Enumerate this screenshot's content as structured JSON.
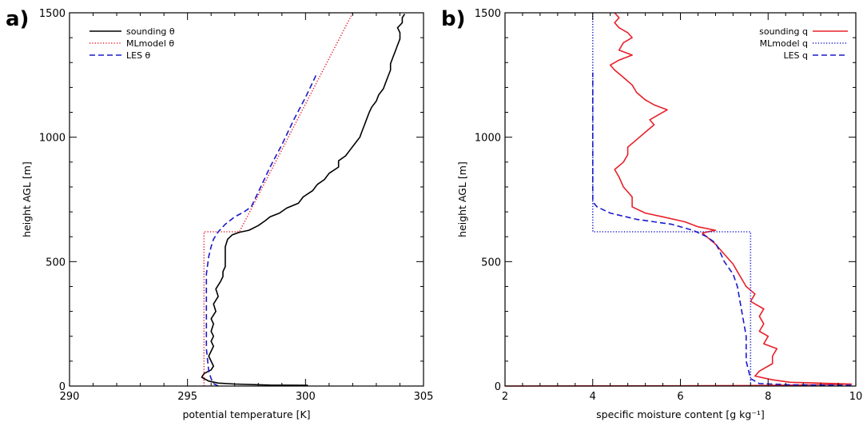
{
  "chart_data": [
    {
      "panel_label": "a)",
      "type": "line",
      "xlabel": "potential temperature [K]",
      "ylabel": "height AGL [m]",
      "xlim": [
        290,
        305
      ],
      "ylim": [
        0,
        1500
      ],
      "xticks": [
        290,
        295,
        300,
        305
      ],
      "yticks": [
        0,
        500,
        1000,
        1500
      ],
      "grid": false,
      "legend_position": "top-left",
      "series": [
        {
          "name": "sounding θ",
          "color": "#000000",
          "dash": "solid",
          "points": [
            [
              300.1,
              3
            ],
            [
              298.5,
              4
            ],
            [
              297.0,
              8
            ],
            [
              296.3,
              12
            ],
            [
              295.9,
              20
            ],
            [
              295.6,
              35
            ],
            [
              295.7,
              50
            ],
            [
              296.0,
              65
            ],
            [
              296.1,
              80
            ],
            [
              296.0,
              100
            ],
            [
              295.9,
              120
            ],
            [
              296.0,
              140
            ],
            [
              296.1,
              160
            ],
            [
              296.0,
              180
            ],
            [
              296.1,
              200
            ],
            [
              296.0,
              220
            ],
            [
              296.1,
              250
            ],
            [
              296.0,
              270
            ],
            [
              296.2,
              300
            ],
            [
              296.1,
              330
            ],
            [
              296.3,
              360
            ],
            [
              296.2,
              390
            ],
            [
              296.4,
              420
            ],
            [
              296.5,
              440
            ],
            [
              296.5,
              460
            ],
            [
              296.6,
              480
            ],
            [
              296.6,
              500
            ],
            [
              296.6,
              530
            ],
            [
              296.6,
              560
            ],
            [
              296.7,
              590
            ],
            [
              296.9,
              608
            ],
            [
              297.2,
              618
            ],
            [
              297.6,
              626
            ],
            [
              298.0,
              645
            ],
            [
              298.3,
              665
            ],
            [
              298.5,
              680
            ],
            [
              298.9,
              695
            ],
            [
              299.2,
              715
            ],
            [
              299.7,
              735
            ],
            [
              299.9,
              760
            ],
            [
              300.3,
              785
            ],
            [
              300.5,
              810
            ],
            [
              300.8,
              830
            ],
            [
              301.0,
              855
            ],
            [
              301.4,
              880
            ],
            [
              301.4,
              905
            ],
            [
              301.7,
              925
            ],
            [
              301.9,
              950
            ],
            [
              302.1,
              975
            ],
            [
              302.3,
              1000
            ],
            [
              302.4,
              1025
            ],
            [
              302.5,
              1050
            ],
            [
              302.6,
              1075
            ],
            [
              302.7,
              1100
            ],
            [
              302.8,
              1120
            ],
            [
              303.0,
              1145
            ],
            [
              303.1,
              1170
            ],
            [
              303.3,
              1195
            ],
            [
              303.4,
              1220
            ],
            [
              303.5,
              1245
            ],
            [
              303.6,
              1270
            ],
            [
              303.6,
              1295
            ],
            [
              303.7,
              1320
            ],
            [
              303.8,
              1345
            ],
            [
              303.9,
              1370
            ],
            [
              304.0,
              1395
            ],
            [
              304.0,
              1420
            ],
            [
              303.9,
              1440
            ],
            [
              304.1,
              1460
            ],
            [
              304.1,
              1480
            ],
            [
              304.2,
              1495
            ]
          ]
        },
        {
          "name": "MLmodel θ",
          "color": "#e8202a",
          "dash": "dotted",
          "points": [
            [
              295.7,
              0
            ],
            [
              295.7,
              620
            ],
            [
              297.2,
              620
            ],
            [
              302.0,
              1500
            ]
          ]
        },
        {
          "name": "LES θ",
          "color": "#1a1acc",
          "dash": "dashed",
          "points": [
            [
              296.3,
              0
            ],
            [
              296.1,
              10
            ],
            [
              296.0,
              30
            ],
            [
              295.9,
              60
            ],
            [
              295.8,
              150
            ],
            [
              295.8,
              300
            ],
            [
              295.8,
              450
            ],
            [
              295.9,
              520
            ],
            [
              296.0,
              560
            ],
            [
              296.1,
              590
            ],
            [
              296.3,
              620
            ],
            [
              296.6,
              650
            ],
            [
              297.0,
              680
            ],
            [
              297.4,
              700
            ],
            [
              297.7,
              720
            ],
            [
              298.0,
              780
            ],
            [
              298.5,
              880
            ],
            [
              299.0,
              970
            ],
            [
              299.5,
              1070
            ],
            [
              300.0,
              1160
            ],
            [
              300.5,
              1260
            ]
          ]
        }
      ]
    },
    {
      "panel_label": "b)",
      "type": "line",
      "xlabel": "specific moisture content [g kg⁻¹]",
      "ylabel": "height AGL [m]",
      "xlim": [
        2,
        10
      ],
      "ylim": [
        0,
        1500
      ],
      "xticks": [
        2,
        4,
        6,
        8,
        10
      ],
      "yticks": [
        0,
        500,
        1000,
        1500
      ],
      "grid": false,
      "legend_position": "top-right",
      "series": [
        {
          "name": "sounding q",
          "color": "#e8202a",
          "dash": "solid",
          "points": [
            [
              2.0,
              0
            ],
            [
              6.0,
              1
            ],
            [
              7.5,
              2
            ],
            [
              8.6,
              4
            ],
            [
              9.5,
              6
            ],
            [
              9.9,
              8
            ],
            [
              8.5,
              15
            ],
            [
              8.1,
              25
            ],
            [
              7.7,
              40
            ],
            [
              7.8,
              60
            ],
            [
              8.1,
              90
            ],
            [
              8.1,
              120
            ],
            [
              8.2,
              150
            ],
            [
              7.9,
              170
            ],
            [
              8.0,
              200
            ],
            [
              7.8,
              220
            ],
            [
              7.9,
              250
            ],
            [
              7.8,
              280
            ],
            [
              7.9,
              310
            ],
            [
              7.6,
              340
            ],
            [
              7.7,
              370
            ],
            [
              7.5,
              400
            ],
            [
              7.4,
              430
            ],
            [
              7.3,
              460
            ],
            [
              7.2,
              490
            ],
            [
              7.0,
              530
            ],
            [
              6.8,
              570
            ],
            [
              6.6,
              600
            ],
            [
              6.5,
              615
            ],
            [
              6.8,
              626
            ],
            [
              6.4,
              640
            ],
            [
              6.1,
              660
            ],
            [
              5.6,
              680
            ],
            [
              5.2,
              695
            ],
            [
              4.9,
              720
            ],
            [
              4.9,
              760
            ],
            [
              4.7,
              800
            ],
            [
              4.6,
              840
            ],
            [
              4.5,
              870
            ],
            [
              4.7,
              900
            ],
            [
              4.8,
              930
            ],
            [
              4.8,
              960
            ],
            [
              5.0,
              990
            ],
            [
              5.2,
              1020
            ],
            [
              5.4,
              1050
            ],
            [
              5.3,
              1070
            ],
            [
              5.5,
              1090
            ],
            [
              5.7,
              1110
            ],
            [
              5.4,
              1130
            ],
            [
              5.2,
              1150
            ],
            [
              5.0,
              1180
            ],
            [
              4.9,
              1210
            ],
            [
              4.7,
              1240
            ],
            [
              4.5,
              1270
            ],
            [
              4.4,
              1290
            ],
            [
              4.6,
              1310
            ],
            [
              4.9,
              1330
            ],
            [
              4.6,
              1350
            ],
            [
              4.7,
              1380
            ],
            [
              4.9,
              1400
            ],
            [
              4.8,
              1420
            ],
            [
              4.6,
              1440
            ],
            [
              4.5,
              1460
            ],
            [
              4.6,
              1480
            ],
            [
              4.5,
              1500
            ]
          ]
        },
        {
          "name": "MLmodel q",
          "color": "#1a1acc",
          "dash": "dotted",
          "points": [
            [
              7.6,
              0
            ],
            [
              7.6,
              620
            ],
            [
              4.0,
              620
            ],
            [
              4.0,
              1500
            ]
          ]
        },
        {
          "name": "LES q",
          "color": "#1a1acc",
          "dash": "dashed",
          "points": [
            [
              9.9,
              3
            ],
            [
              8.5,
              5
            ],
            [
              7.8,
              10
            ],
            [
              7.6,
              30
            ],
            [
              7.5,
              100
            ],
            [
              7.5,
              200
            ],
            [
              7.4,
              300
            ],
            [
              7.3,
              400
            ],
            [
              7.2,
              450
            ],
            [
              7.0,
              500
            ],
            [
              6.9,
              540
            ],
            [
              6.8,
              575
            ],
            [
              6.6,
              600
            ],
            [
              6.3,
              625
            ],
            [
              5.8,
              650
            ],
            [
              5.0,
              670
            ],
            [
              4.4,
              695
            ],
            [
              4.1,
              720
            ],
            [
              4.0,
              740
            ],
            [
              4.0,
              780
            ],
            [
              4.0,
              900
            ],
            [
              4.0,
              1100
            ],
            [
              4.0,
              1260
            ]
          ]
        }
      ]
    }
  ]
}
